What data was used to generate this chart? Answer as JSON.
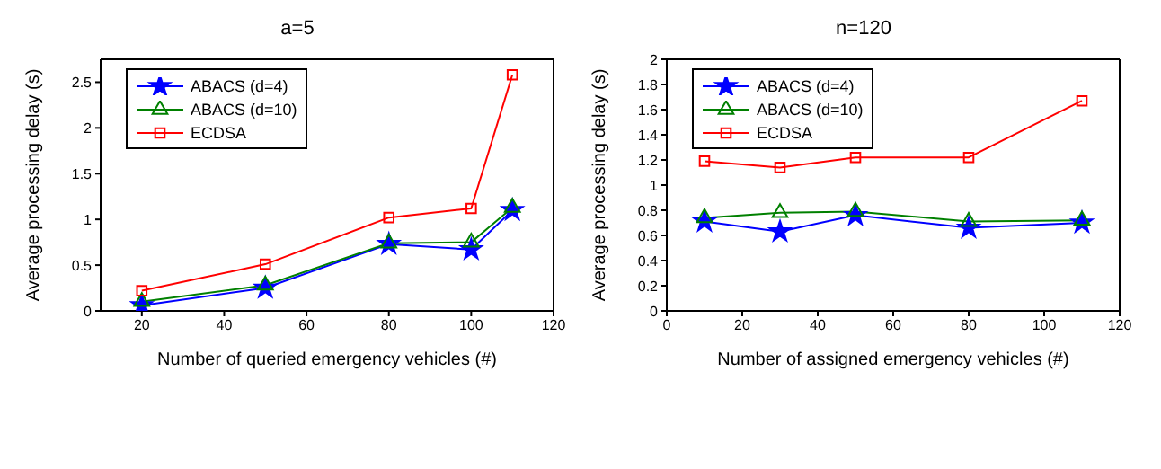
{
  "chart_data": [
    {
      "type": "line",
      "title": "a=5",
      "xlabel": "Number of queried emergency vehicles (#)",
      "ylabel": "Average processing delay (s)",
      "x": [
        20,
        50,
        80,
        100,
        110
      ],
      "xlim": [
        10,
        120
      ],
      "xticks": [
        20,
        40,
        60,
        80,
        100,
        120
      ],
      "ylim": [
        0,
        2.75
      ],
      "yticks": [
        0,
        0.5,
        1,
        1.5,
        2,
        2.5
      ],
      "legend": "top left",
      "grid": false,
      "series": [
        {
          "name": "ABACS (d=4)",
          "color": "#0000ff",
          "marker": "star",
          "values": [
            0.06,
            0.25,
            0.73,
            0.67,
            1.1
          ]
        },
        {
          "name": "ABACS (d=10)",
          "color": "#008000",
          "marker": "triangle",
          "values": [
            0.1,
            0.28,
            0.74,
            0.75,
            1.13
          ]
        },
        {
          "name": "ECDSA",
          "color": "#ff0000",
          "marker": "square",
          "values": [
            0.22,
            0.51,
            1.02,
            1.12,
            2.58
          ]
        }
      ]
    },
    {
      "type": "line",
      "title": "n=120",
      "xlabel": "Number of assigned emergency vehicles (#)",
      "ylabel": "Average processing delay (s)",
      "x": [
        10,
        30,
        50,
        80,
        110
      ],
      "xlim": [
        0,
        120
      ],
      "xticks": [
        0,
        20,
        40,
        60,
        80,
        100,
        120
      ],
      "ylim": [
        0,
        2
      ],
      "yticks": [
        0,
        0.2,
        0.4,
        0.6,
        0.8,
        1,
        1.2,
        1.4,
        1.6,
        1.8,
        2
      ],
      "legend": "top left",
      "grid": false,
      "series": [
        {
          "name": "ABACS (d=4)",
          "color": "#0000ff",
          "marker": "star",
          "values": [
            0.71,
            0.63,
            0.76,
            0.66,
            0.7
          ]
        },
        {
          "name": "ABACS (d=10)",
          "color": "#008000",
          "marker": "triangle",
          "values": [
            0.74,
            0.78,
            0.79,
            0.71,
            0.72
          ]
        },
        {
          "name": "ECDSA",
          "color": "#ff0000",
          "marker": "square",
          "values": [
            1.19,
            1.14,
            1.22,
            1.22,
            1.67
          ]
        }
      ]
    }
  ]
}
